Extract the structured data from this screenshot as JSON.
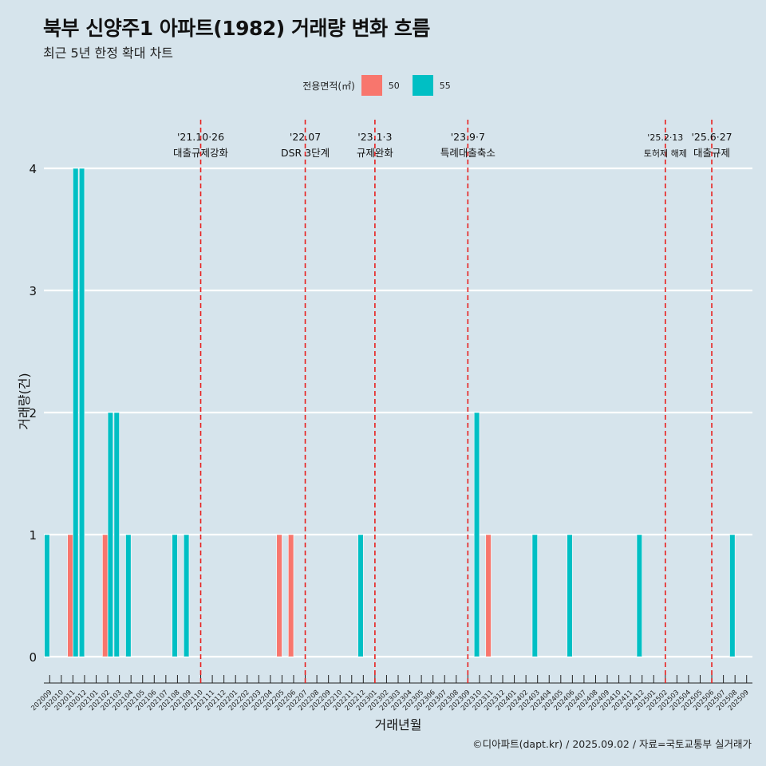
{
  "title": "북부 신양주1 아파트(1982) 거래량 변화 흐름",
  "subtitle": "최근 5년 한정 확대 차트",
  "legend_title": "전용면적(㎡)",
  "caption": "©디아파트(dapt.kr) / 2025.09.02 / 자료=국토교통부 실거래가",
  "colors": {
    "50": "#f8766d",
    "55": "#00bfc4",
    "background": "#d6e4ec",
    "event_line": "#e8201e"
  },
  "chart_data": {
    "type": "bar",
    "title": "북부 신양주1 아파트(1982) 거래량 변화 흐름",
    "xlabel": "거래년월",
    "ylabel": "거래량(건)",
    "ylim": [
      0,
      4
    ],
    "yticks": [
      "0",
      "1",
      "2",
      "3",
      "4"
    ],
    "categories": [
      "202009",
      "202010",
      "202011",
      "202012",
      "202101",
      "202102",
      "202103",
      "202104",
      "202105",
      "202106",
      "202107",
      "202108",
      "202109",
      "202110",
      "202111",
      "202112",
      "202201",
      "202202",
      "202203",
      "202204",
      "202205",
      "202206",
      "202207",
      "202208",
      "202209",
      "202210",
      "202211",
      "202212",
      "202301",
      "202302",
      "202303",
      "202304",
      "202305",
      "202306",
      "202307",
      "202308",
      "202309",
      "202310",
      "202311",
      "202312",
      "202401",
      "202402",
      "202403",
      "202404",
      "202405",
      "202406",
      "202407",
      "202408",
      "202409",
      "202410",
      "202411",
      "202412",
      "202501",
      "202502",
      "202503",
      "202504",
      "202505",
      "202506",
      "202507",
      "202508",
      "202509"
    ],
    "series": [
      {
        "name": "50",
        "color": "#f8766d",
        "values": [
          0,
          0,
          1,
          0,
          0,
          1,
          0,
          0,
          0,
          0,
          0,
          0,
          0,
          0,
          0,
          0,
          0,
          0,
          0,
          0,
          1,
          1,
          0,
          0,
          0,
          0,
          0,
          0,
          0,
          0,
          0,
          0,
          0,
          0,
          0,
          0,
          0,
          0,
          1,
          0,
          0,
          0,
          0,
          0,
          0,
          0,
          0,
          0,
          0,
          0,
          0,
          0,
          0,
          0,
          0,
          0,
          0,
          0,
          0,
          0,
          0
        ]
      },
      {
        "name": "55",
        "color": "#00bfc4",
        "values": [
          1,
          0,
          4,
          4,
          0,
          2,
          2,
          1,
          0,
          0,
          0,
          1,
          1,
          0,
          0,
          0,
          0,
          0,
          0,
          0,
          0,
          0,
          0,
          0,
          0,
          0,
          0,
          1,
          0,
          0,
          0,
          0,
          0,
          0,
          0,
          0,
          0,
          2,
          0,
          0,
          0,
          0,
          1,
          0,
          0,
          1,
          0,
          0,
          0,
          0,
          0,
          1,
          0,
          0,
          0,
          0,
          0,
          0,
          0,
          1,
          0
        ]
      }
    ],
    "events": [
      {
        "date": "'21.10·26",
        "label": "대출규제강화",
        "at": "202110"
      },
      {
        "date": "'22.07",
        "label": "DSR 3단계",
        "at": "202207"
      },
      {
        "date": "'23.1·3",
        "label": "규제완화",
        "at": "202301"
      },
      {
        "date": "'23.9·7",
        "label": "특례대출축소",
        "at": "202309"
      },
      {
        "date": "'25.2·13",
        "label": "토허제 해제",
        "at": "202502"
      },
      {
        "date": "'25.6·27",
        "label": "대출규제",
        "at": "202506"
      }
    ],
    "grid": true,
    "legend_position": "top"
  }
}
